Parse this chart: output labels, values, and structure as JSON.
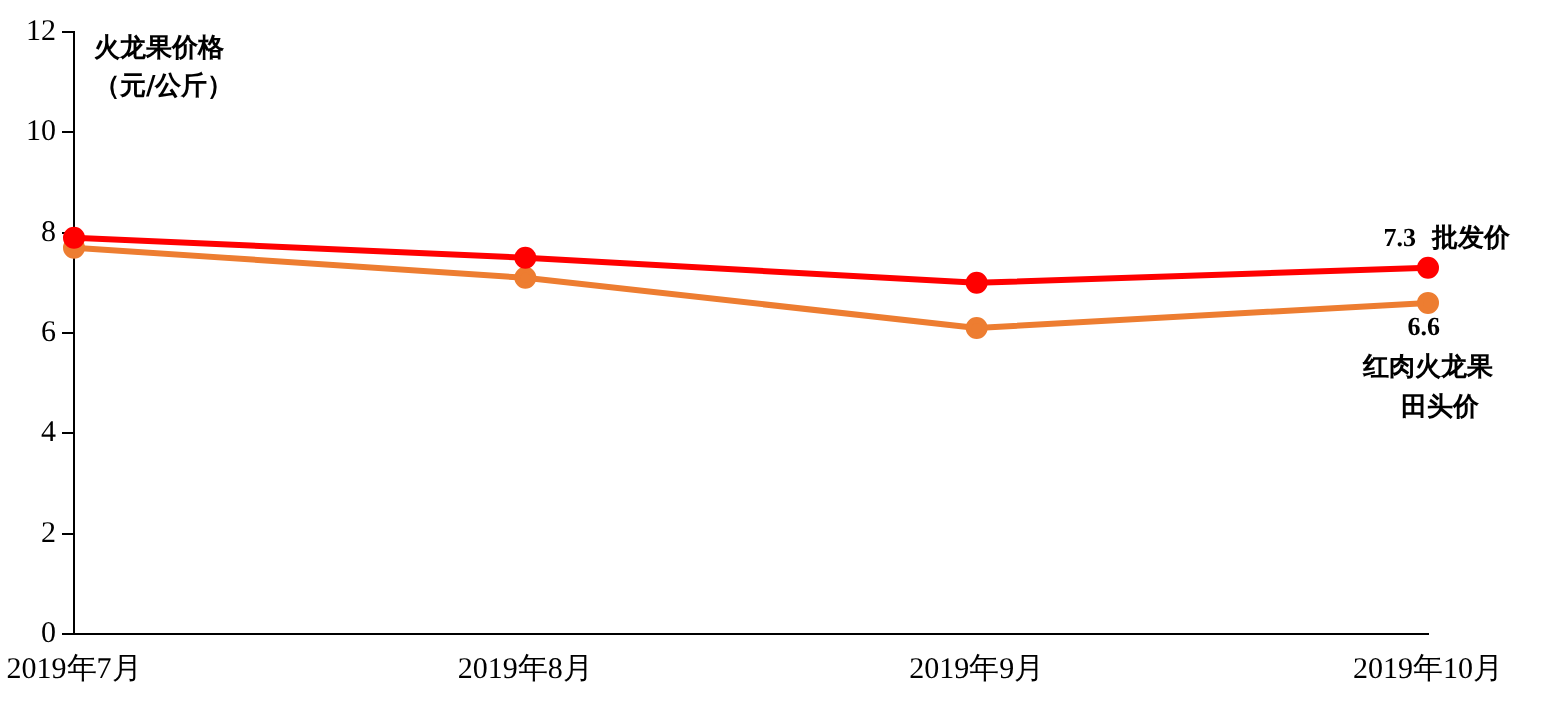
{
  "chart_data": {
    "type": "line",
    "ylabel": "火龙果价格（元/公斤）",
    "categories": [
      "2019年7月",
      "2019年8月",
      "2019年9月",
      "2019年10月"
    ],
    "series": [
      {
        "name": "批发价",
        "color": "#ff0000",
        "values": [
          7.9,
          7.5,
          7.0,
          7.3
        ],
        "value_labels": [
          null,
          null,
          null,
          "7.3"
        ]
      },
      {
        "name": "红肉火龙果田头价",
        "color": "#ed7d31",
        "values": [
          7.7,
          7.1,
          6.1,
          6.6
        ],
        "value_labels": [
          null,
          null,
          null,
          "6.6"
        ]
      }
    ],
    "ylim": [
      0,
      12
    ],
    "yticks": [
      0,
      2,
      4,
      6,
      8,
      10,
      12
    ],
    "grid": false,
    "legend": false,
    "marker": "circle",
    "line_style": "solid"
  }
}
